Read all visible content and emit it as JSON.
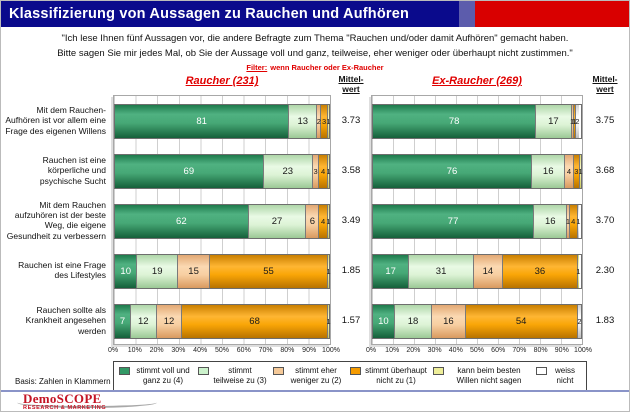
{
  "header": {
    "title": "Klassifizierung von Aussagen zu Rauchen und Aufhören"
  },
  "intro": {
    "line1": "\"Ich lese Ihnen fünf Aussagen vor, die andere Befragte zum Thema \"Rauchen und/oder damit Aufhören\" gemacht haben.",
    "line2": "Bitte sagen Sie mir jedes Mal, ob Sie der Aussage voll und ganz, teilweise, eher weniger oder überhaupt nicht zustimmen.\"",
    "filter_label": "Filter:",
    "filter_text": "wenn Raucher oder Ex-Raucher"
  },
  "chart_data": {
    "type": "bar",
    "variant": "horizontal-stacked",
    "unit": "%",
    "grid": true,
    "xlim": [
      0,
      100
    ],
    "x_ticks": [
      "0%",
      "10%",
      "20%",
      "30%",
      "40%",
      "50%",
      "60%",
      "70%",
      "80%",
      "90%",
      "100%"
    ],
    "mw_line1": "Mittel-",
    "mw_line2": "wert",
    "categories": [
      "Mit dem Rauchen-Aufhören ist vor allem eine Frage des eigenen Willens",
      "Rauchen ist eine körperliche und psychische Sucht",
      "Mit dem Rauchen aufzuhören ist der beste Weg, die eigene Gesundheit zu verbessern",
      "Rauchen ist eine Frage des Lifestyles",
      "Rauchen sollte als Krankheit angesehen werden"
    ],
    "legend": [
      {
        "label": "stimmt voll und ganz zu (4)",
        "color": "#339966"
      },
      {
        "label": "stimmt teilweise zu (3)",
        "color": "#ccf2cc"
      },
      {
        "label": "stimmt eher weniger zu (2)",
        "color": "#f5c998"
      },
      {
        "label": "stimmt überhaupt nicht zu (1)",
        "color": "#f59b00"
      },
      {
        "label": "kann beim besten Willen nicht sagen",
        "color": "#eeee99"
      },
      {
        "label": "weiss nicht",
        "color": "#ffffff"
      }
    ],
    "groups": [
      {
        "title": "Raucher (231)",
        "rows": [
          {
            "values": [
              81,
              13,
              2,
              3,
              1,
              0
            ],
            "mittelwert": "3.73"
          },
          {
            "values": [
              69,
              23,
              3,
              4,
              1,
              0
            ],
            "mittelwert": "3.58"
          },
          {
            "values": [
              62,
              27,
              6,
              4,
              1,
              0
            ],
            "mittelwert": "3.49"
          },
          {
            "values": [
              10,
              19,
              15,
              55,
              1,
              0
            ],
            "mittelwert": "1.85"
          },
          {
            "values": [
              7,
              12,
              12,
              68,
              1,
              0
            ],
            "mittelwert": "1.57"
          }
        ]
      },
      {
        "title": "Ex-Raucher (269)",
        "rows": [
          {
            "values": [
              78,
              17,
              1,
              1,
              0,
              2
            ],
            "mittelwert": "3.75"
          },
          {
            "values": [
              76,
              16,
              4,
              3,
              1,
              0
            ],
            "mittelwert": "3.68"
          },
          {
            "values": [
              77,
              16,
              1,
              4,
              0,
              1
            ],
            "mittelwert": "3.70"
          },
          {
            "values": [
              17,
              31,
              14,
              36,
              1,
              0
            ],
            "mittelwert": "2.30"
          },
          {
            "values": [
              10,
              18,
              16,
              54,
              0,
              2
            ],
            "mittelwert": "1.83"
          }
        ]
      }
    ]
  },
  "footer": {
    "basis": "Basis: Zahlen in Klammern",
    "logo_title": "DemoSCOPE",
    "logo_subtitle": "RESEARCH & MARKETING"
  }
}
